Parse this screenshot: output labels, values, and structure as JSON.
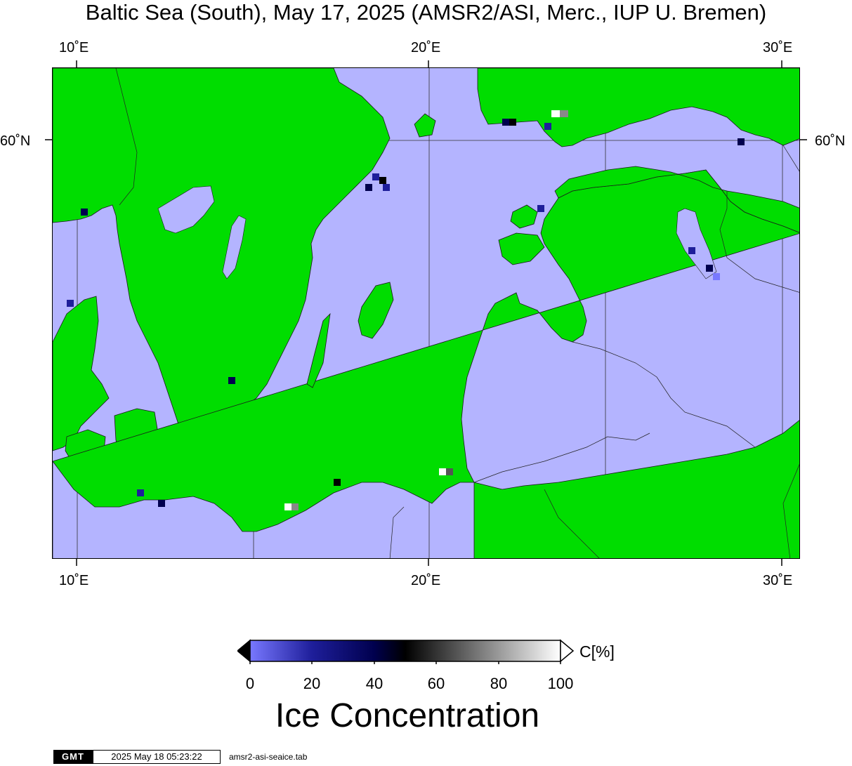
{
  "title": "Baltic Sea (South), May 17, 2025 (AMSR2/ASI, Merc., IUP U. Bremen)",
  "map": {
    "lon_min": 9.3,
    "lon_max": 30.5,
    "lat_min": 53.8,
    "lat_max": 61.1,
    "longitude_ticks": [
      {
        "lon": 10,
        "label": "10˚E"
      },
      {
        "lon": 20,
        "label": "20˚E"
      },
      {
        "lon": 30,
        "label": "30˚E"
      }
    ],
    "latitude_ticks": [
      {
        "lat": 60,
        "label": "60˚N"
      }
    ],
    "colors": {
      "land": "#00dd00",
      "water_zero_ice": "#b4b4ff",
      "coast_line": "#1a1a1a",
      "border_line": "#222222"
    }
  },
  "colorbar": {
    "ticks": [
      "0",
      "20",
      "40",
      "60",
      "80",
      "100"
    ],
    "unit_label": "C[%]",
    "title": "Ice Concentration",
    "colors": {
      "c0": "#7878ff",
      "c20": "#1e1e9a",
      "c40": "#00004e",
      "c50": "#000000",
      "c100": "#ffffff"
    }
  },
  "footer": {
    "logo_text": "GMT",
    "timestamp": "2025 May 18 05:23:22",
    "filename": "amsr2-asi-seaice.tab"
  }
}
